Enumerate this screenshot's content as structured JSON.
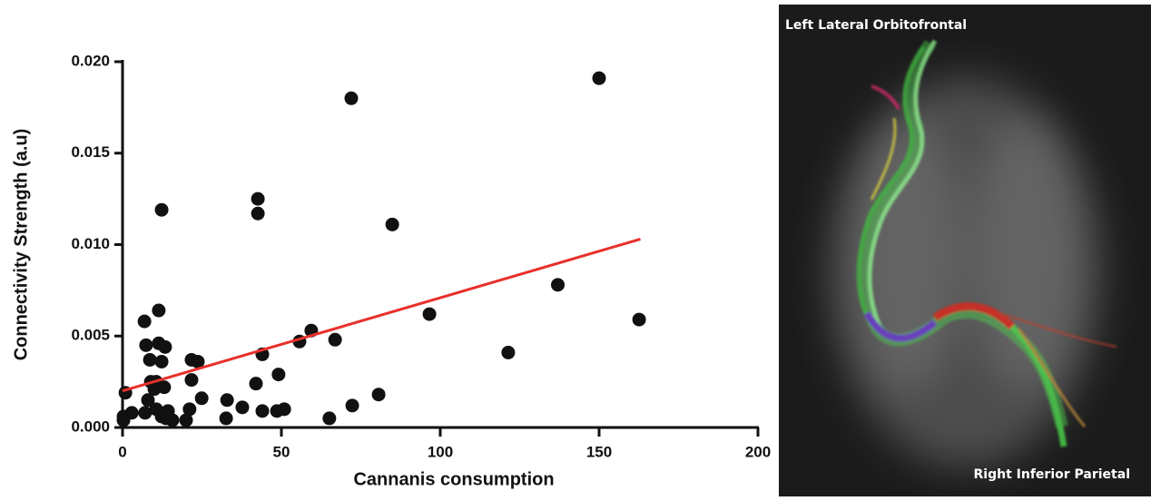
{
  "chart_data": {
    "type": "scatter",
    "xlabel": "Cannanis consumption",
    "ylabel": "Connectivity Strength (a.u)",
    "xlim": [
      0,
      200
    ],
    "ylim": [
      0,
      0.02
    ],
    "xticks": [
      0,
      50,
      100,
      150,
      200
    ],
    "yticks": [
      {
        "value": 0,
        "label": "0.000"
      },
      {
        "value": 0.005,
        "label": "0.005"
      },
      {
        "value": 0.01,
        "label": "0.010"
      },
      {
        "value": 0.015,
        "label": "0.015"
      },
      {
        "value": 0.02,
        "label": "0.020"
      }
    ],
    "color": "#111111",
    "x": [
      72,
      150,
      12.3,
      42.6,
      42.6,
      84.9,
      137,
      96.6,
      162.6,
      121.4,
      11.4,
      6.9,
      59.4,
      55.7,
      66.9,
      7.4,
      11.4,
      13.4,
      44,
      21.7,
      23.7,
      8.6,
      12.3,
      49.1,
      21.7,
      42,
      8.9,
      10.6,
      13.1,
      10,
      0.9,
      80.6,
      8,
      32.9,
      24.9,
      72.3,
      37.7,
      50.9,
      48.6,
      44,
      21.1,
      14.3,
      7.1,
      2.9,
      0.3,
      0.3,
      12.3,
      15.7,
      20,
      32.6,
      65.1,
      13.7,
      10.6
    ],
    "values": [
      0.018,
      0.0191,
      0.0119,
      0.0125,
      0.0117,
      0.0111,
      0.0078,
      0.0062,
      0.0059,
      0.0041,
      0.0064,
      0.0058,
      0.0053,
      0.0047,
      0.0048,
      0.0045,
      0.0046,
      0.0044,
      0.004,
      0.0037,
      0.0036,
      0.0037,
      0.0036,
      0.0029,
      0.0026,
      0.0024,
      0.0025,
      0.0025,
      0.0022,
      0.0021,
      0.0019,
      0.0018,
      0.0015,
      0.0015,
      0.0016,
      0.0012,
      0.0011,
      0.001,
      0.0009,
      0.0009,
      0.001,
      0.0009,
      0.0008,
      0.0008,
      0.0006,
      0.0004,
      0.0006,
      0.0004,
      0.0004,
      0.0005,
      0.0005,
      0.0005,
      0.001
    ],
    "regression": {
      "x": [
        0,
        163
      ],
      "values": [
        0.002,
        0.0103
      ],
      "color": "#e8302a"
    },
    "annotations": [
      "Left Lateral Orbitofrontal",
      "Right Inferior Parietal"
    ]
  }
}
